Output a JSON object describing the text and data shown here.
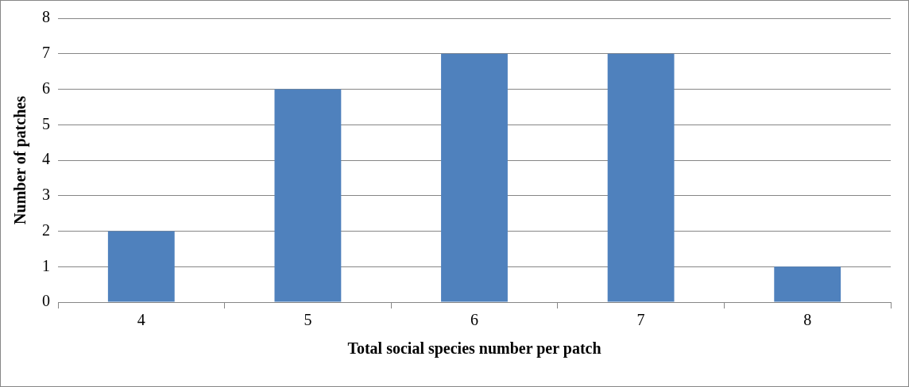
{
  "chart_data": {
    "type": "bar",
    "xlabel": "Total social species number per patch",
    "ylabel": "Number of patches",
    "categories": [
      "4",
      "5",
      "6",
      "7",
      "8"
    ],
    "values": [
      2,
      6,
      7,
      7,
      1
    ],
    "color": "#4f81bd",
    "ylim": [
      0,
      8
    ],
    "yticks": [
      0,
      1,
      2,
      3,
      4,
      5,
      6,
      7,
      8
    ],
    "grid": "y",
    "legend": false
  }
}
